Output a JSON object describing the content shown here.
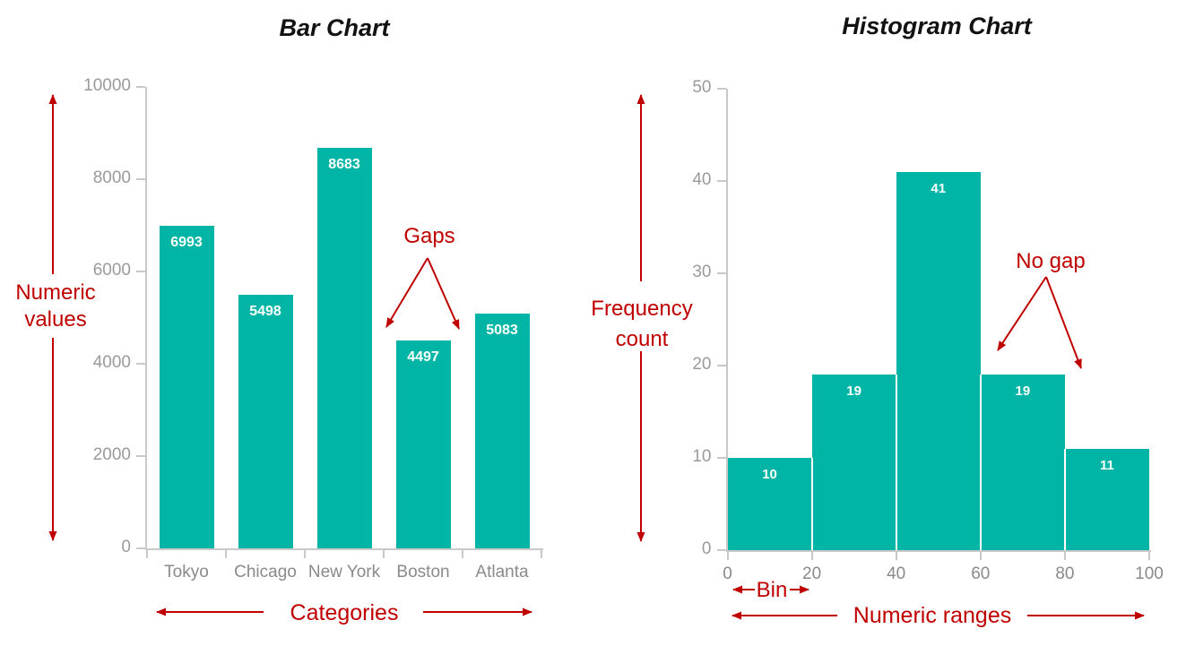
{
  "colors": {
    "bar_teal": "#00b5a5",
    "annotation_red": "#c00000",
    "axis_line": "#c9c9c9",
    "tick_label_gray": "#9a9a9a",
    "category_label_gray": "#8a8a8a",
    "title_black": "#121212",
    "bar_value_white": "#ffffff"
  },
  "chart_data": [
    {
      "type": "bar",
      "title": "Bar Chart",
      "categories": [
        "Tokyo",
        "Chicago",
        "New York",
        "Boston",
        "Atlanta"
      ],
      "values": [
        6993,
        5498,
        8683,
        4497,
        5083
      ],
      "data_labels": [
        "6993",
        "5498",
        "8683",
        "4497",
        "5083"
      ],
      "ylim": [
        0,
        10000
      ],
      "yticks": [
        0,
        2000,
        4000,
        6000,
        8000,
        10000
      ],
      "ytick_labels": [
        "0",
        "2000",
        "4000",
        "6000",
        "8000",
        "10000"
      ],
      "grid": false,
      "legend": "none",
      "bar_color": "#00b5a5"
    },
    {
      "type": "histogram",
      "title": "Histogram Chart",
      "bin_edges": [
        0,
        20,
        40,
        60,
        80,
        100
      ],
      "bin_edge_labels": [
        "0",
        "20",
        "40",
        "60",
        "80",
        "100"
      ],
      "values": [
        10,
        19,
        41,
        19,
        11
      ],
      "data_labels": [
        "10",
        "19",
        "41",
        "19",
        "11"
      ],
      "ylim": [
        0,
        50
      ],
      "yticks": [
        0,
        10,
        20,
        30,
        40,
        50
      ],
      "ytick_labels": [
        "0",
        "10",
        "20",
        "30",
        "40",
        "50"
      ],
      "grid": false,
      "legend": "none",
      "bar_color": "#00b5a5"
    }
  ],
  "annotations": {
    "numeric_values": {
      "line1": "Numeric",
      "line2": "values"
    },
    "gaps": "Gaps",
    "categories": "Categories",
    "frequency_count": {
      "line1": "Frequency",
      "line2": "count"
    },
    "no_gap": "No gap",
    "bin": "Bin",
    "numeric_ranges": "Numeric ranges"
  }
}
